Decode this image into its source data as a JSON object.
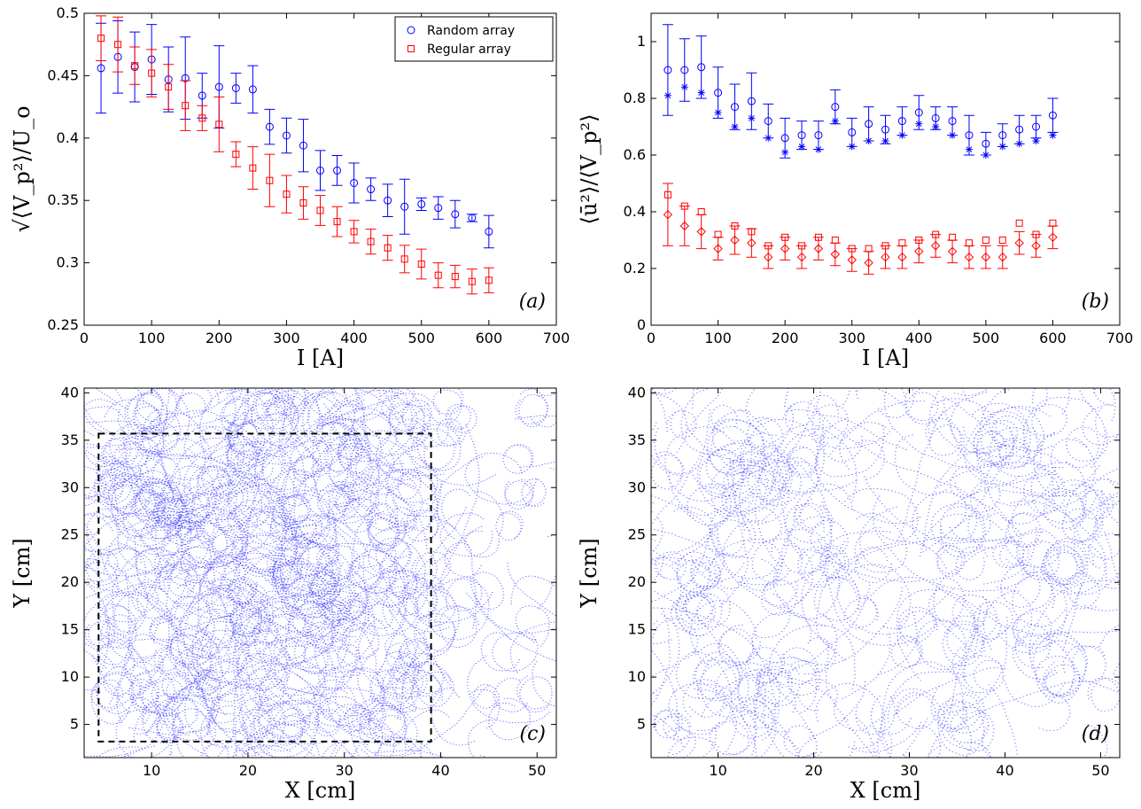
{
  "chart_data": [
    {
      "id": "a",
      "type": "scatter",
      "panel_label": "(a)",
      "xlabel": "I [A]",
      "ylabel": "√⟨V_p²⟩/U_o",
      "xlim": [
        0,
        700
      ],
      "ylim": [
        0.25,
        0.5
      ],
      "xticks": [
        0,
        100,
        200,
        300,
        400,
        500,
        600,
        700
      ],
      "yticks": [
        0.25,
        0.3,
        0.35,
        0.4,
        0.45,
        0.5
      ],
      "ytick_labels": [
        "0.25",
        "0.3",
        "0.35",
        "0.4",
        "0.45",
        "0.5"
      ],
      "legend": {
        "position": "top-right",
        "entries": [
          "Random array",
          "Regular array"
        ]
      },
      "series": [
        {
          "name": "Random array",
          "color": "#0000ff",
          "marker": "circle",
          "x": [
            25,
            50,
            75,
            100,
            125,
            150,
            175,
            200,
            225,
            250,
            275,
            300,
            325,
            350,
            375,
            400,
            425,
            450,
            475,
            500,
            525,
            550,
            575,
            600
          ],
          "y": [
            0.456,
            0.465,
            0.457,
            0.463,
            0.447,
            0.448,
            0.434,
            0.441,
            0.44,
            0.439,
            0.409,
            0.402,
            0.394,
            0.374,
            0.374,
            0.364,
            0.359,
            0.35,
            0.345,
            0.347,
            0.344,
            0.339,
            0.336,
            0.325
          ],
          "err": [
            0.036,
            0.029,
            0.028,
            0.028,
            0.026,
            0.033,
            0.018,
            0.033,
            0.012,
            0.019,
            0.014,
            0.014,
            0.021,
            0.016,
            0.012,
            0.016,
            0.009,
            0.013,
            0.022,
            0.005,
            0.009,
            0.011,
            0.003,
            0.013
          ]
        },
        {
          "name": "Regular array",
          "color": "#ff0000",
          "marker": "square",
          "x": [
            25,
            50,
            75,
            100,
            125,
            150,
            175,
            200,
            225,
            250,
            275,
            300,
            325,
            350,
            375,
            400,
            425,
            450,
            475,
            500,
            525,
            550,
            575,
            600
          ],
          "y": [
            0.48,
            0.475,
            0.458,
            0.452,
            0.441,
            0.426,
            0.416,
            0.411,
            0.387,
            0.376,
            0.366,
            0.355,
            0.348,
            0.342,
            0.333,
            0.325,
            0.317,
            0.312,
            0.303,
            0.299,
            0.29,
            0.289,
            0.285,
            0.286
          ],
          "err": [
            0.018,
            0.022,
            0.015,
            0.019,
            0.018,
            0.02,
            0.01,
            0.022,
            0.01,
            0.017,
            0.021,
            0.015,
            0.013,
            0.012,
            0.012,
            0.009,
            0.01,
            0.01,
            0.011,
            0.012,
            0.01,
            0.009,
            0.01,
            0.01
          ]
        }
      ]
    },
    {
      "id": "b",
      "type": "scatter",
      "panel_label": "(b)",
      "xlabel": "I [A]",
      "ylabel": "⟨ū²⟩/⟨V_p²⟩",
      "xlim": [
        0,
        700
      ],
      "ylim": [
        0,
        1.1
      ],
      "xticks": [
        0,
        100,
        200,
        300,
        400,
        500,
        600,
        700
      ],
      "yticks": [
        0,
        0.2,
        0.4,
        0.6,
        0.8,
        1
      ],
      "ytick_labels": [
        "0",
        "0.2",
        "0.4",
        "0.6",
        "0.8",
        "1"
      ],
      "series": [
        {
          "color": "#0000ff",
          "marker": "circle",
          "x": [
            25,
            50,
            75,
            100,
            125,
            150,
            175,
            200,
            225,
            250,
            275,
            300,
            325,
            350,
            375,
            400,
            425,
            450,
            475,
            500,
            525,
            550,
            575,
            600
          ],
          "y": [
            0.9,
            0.9,
            0.91,
            0.82,
            0.77,
            0.79,
            0.72,
            0.66,
            0.67,
            0.67,
            0.77,
            0.68,
            0.71,
            0.69,
            0.72,
            0.75,
            0.73,
            0.72,
            0.67,
            0.64,
            0.67,
            0.69,
            0.7,
            0.74
          ],
          "err": [
            0.16,
            0.11,
            0.11,
            0.09,
            0.08,
            0.1,
            0.06,
            0.07,
            0.05,
            0.05,
            0.06,
            0.05,
            0.06,
            0.05,
            0.05,
            0.06,
            0.04,
            0.05,
            0.07,
            0.04,
            0.04,
            0.05,
            0.04,
            0.06
          ]
        },
        {
          "color": "#0000ff",
          "marker": "asterisk",
          "x": [
            25,
            50,
            75,
            100,
            125,
            150,
            175,
            200,
            225,
            250,
            275,
            300,
            325,
            350,
            375,
            400,
            425,
            450,
            475,
            500,
            525,
            550,
            575,
            600
          ],
          "y": [
            0.81,
            0.84,
            0.82,
            0.75,
            0.7,
            0.73,
            0.66,
            0.61,
            0.63,
            0.62,
            0.72,
            0.63,
            0.65,
            0.65,
            0.67,
            0.71,
            0.7,
            0.67,
            0.62,
            0.6,
            0.63,
            0.64,
            0.65,
            0.67
          ]
        },
        {
          "color": "#ff0000",
          "marker": "square",
          "x": [
            25,
            50,
            75,
            100,
            125,
            150,
            175,
            200,
            225,
            250,
            275,
            300,
            325,
            350,
            375,
            400,
            425,
            450,
            475,
            500,
            525,
            550,
            575,
            600
          ],
          "y": [
            0.46,
            0.42,
            0.4,
            0.32,
            0.35,
            0.33,
            0.28,
            0.31,
            0.28,
            0.31,
            0.3,
            0.27,
            0.27,
            0.28,
            0.29,
            0.3,
            0.32,
            0.31,
            0.29,
            0.3,
            0.3,
            0.36,
            0.32,
            0.36
          ]
        },
        {
          "color": "#ff0000",
          "marker": "diamond",
          "x": [
            25,
            50,
            75,
            100,
            125,
            150,
            175,
            200,
            225,
            250,
            275,
            300,
            325,
            350,
            375,
            400,
            425,
            450,
            475,
            500,
            525,
            550,
            575,
            600
          ],
          "y": [
            0.39,
            0.35,
            0.33,
            0.27,
            0.3,
            0.29,
            0.24,
            0.27,
            0.24,
            0.27,
            0.25,
            0.23,
            0.22,
            0.24,
            0.24,
            0.26,
            0.28,
            0.26,
            0.24,
            0.24,
            0.24,
            0.29,
            0.28,
            0.31
          ],
          "err": [
            0.11,
            0.07,
            0.06,
            0.04,
            0.05,
            0.05,
            0.04,
            0.04,
            0.04,
            0.04,
            0.04,
            0.04,
            0.04,
            0.04,
            0.04,
            0.04,
            0.04,
            0.04,
            0.04,
            0.04,
            0.04,
            0.04,
            0.04,
            0.04
          ]
        }
      ]
    },
    {
      "id": "c",
      "type": "scatter",
      "panel_label": "(c)",
      "xlabel": "X [cm]",
      "ylabel": "Y [cm]",
      "xlim": [
        3,
        52
      ],
      "ylim": [
        1.5,
        40.5
      ],
      "xticks": [
        10,
        20,
        30,
        40,
        50
      ],
      "yticks": [
        5,
        10,
        15,
        20,
        25,
        30,
        35,
        40
      ],
      "dashed_box": {
        "x": [
          4.5,
          39
        ],
        "y": [
          3.2,
          35.7
        ]
      },
      "description": "particle trajectories (dense blue dotted tracks)"
    },
    {
      "id": "d",
      "type": "scatter",
      "panel_label": "(d)",
      "xlabel": "X [cm]",
      "ylabel": "Y [cm]",
      "xlim": [
        3,
        52
      ],
      "ylim": [
        1.5,
        40.5
      ],
      "xticks": [
        10,
        20,
        30,
        40,
        50
      ],
      "yticks": [
        5,
        10,
        15,
        20,
        25,
        30,
        35,
        40
      ],
      "description": "particle trajectories (sparser blue dotted tracks)"
    }
  ]
}
